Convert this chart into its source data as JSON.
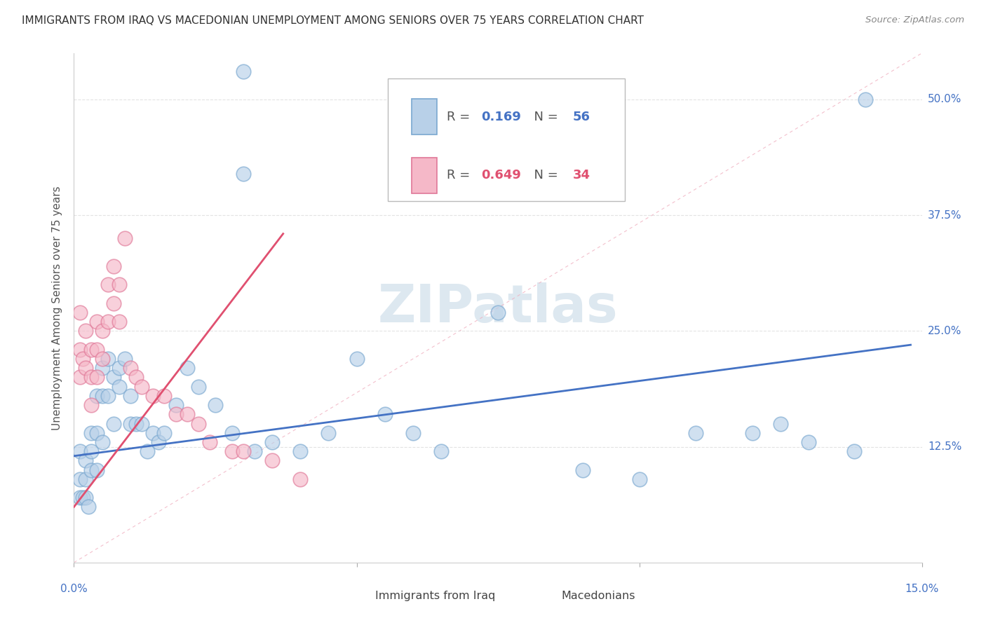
{
  "title": "IMMIGRANTS FROM IRAQ VS MACEDONIAN UNEMPLOYMENT AMONG SENIORS OVER 75 YEARS CORRELATION CHART",
  "source": "Source: ZipAtlas.com",
  "ylabel": "Unemployment Among Seniors over 75 years",
  "xlim": [
    0.0,
    0.15
  ],
  "ylim": [
    0.0,
    0.55
  ],
  "xticks": [
    0.0,
    0.05,
    0.1,
    0.15
  ],
  "xtick_labels": [
    "0.0%",
    "",
    "",
    "15.0%"
  ],
  "yticks": [
    0.0,
    0.125,
    0.25,
    0.375,
    0.5
  ],
  "ytick_labels_right": [
    "",
    "12.5%",
    "25.0%",
    "37.5%",
    "50.0%"
  ],
  "R_blue": 0.169,
  "N_blue": 56,
  "R_pink": 0.649,
  "N_pink": 34,
  "blue_color": "#b8d0e8",
  "pink_color": "#f5b8c8",
  "blue_edge_color": "#7aa8d0",
  "pink_edge_color": "#e07898",
  "blue_line_color": "#4472C4",
  "pink_line_color": "#E05070",
  "diag_color": "#f0b0c0",
  "grid_color": "#d8d8d8",
  "watermark_color": "#dde8f0",
  "legend_box_color": "#cccccc",
  "title_color": "#333333",
  "source_color": "#888888",
  "ylabel_color": "#555555",
  "ytick_color": "#4472C4",
  "xtick_color": "#4472C4",
  "blue_x": [
    0.001,
    0.001,
    0.001,
    0.0015,
    0.002,
    0.002,
    0.002,
    0.0025,
    0.003,
    0.003,
    0.003,
    0.004,
    0.004,
    0.004,
    0.005,
    0.005,
    0.005,
    0.006,
    0.006,
    0.007,
    0.007,
    0.008,
    0.008,
    0.009,
    0.01,
    0.01,
    0.011,
    0.012,
    0.013,
    0.014,
    0.015,
    0.016,
    0.018,
    0.02,
    0.022,
    0.025,
    0.028,
    0.03,
    0.03,
    0.032,
    0.035,
    0.04,
    0.045,
    0.05,
    0.055,
    0.06,
    0.065,
    0.075,
    0.09,
    0.1,
    0.11,
    0.12,
    0.125,
    0.13,
    0.138,
    0.14
  ],
  "blue_y": [
    0.12,
    0.09,
    0.07,
    0.07,
    0.11,
    0.09,
    0.07,
    0.06,
    0.14,
    0.12,
    0.1,
    0.18,
    0.14,
    0.1,
    0.21,
    0.18,
    0.13,
    0.22,
    0.18,
    0.2,
    0.15,
    0.21,
    0.19,
    0.22,
    0.18,
    0.15,
    0.15,
    0.15,
    0.12,
    0.14,
    0.13,
    0.14,
    0.17,
    0.21,
    0.19,
    0.17,
    0.14,
    0.53,
    0.42,
    0.12,
    0.13,
    0.12,
    0.14,
    0.22,
    0.16,
    0.14,
    0.12,
    0.27,
    0.1,
    0.09,
    0.14,
    0.14,
    0.15,
    0.13,
    0.12,
    0.5
  ],
  "pink_x": [
    0.001,
    0.001,
    0.001,
    0.0015,
    0.002,
    0.002,
    0.003,
    0.003,
    0.003,
    0.004,
    0.004,
    0.004,
    0.005,
    0.005,
    0.006,
    0.006,
    0.007,
    0.007,
    0.008,
    0.008,
    0.009,
    0.01,
    0.011,
    0.012,
    0.014,
    0.016,
    0.018,
    0.02,
    0.022,
    0.024,
    0.028,
    0.03,
    0.035,
    0.04
  ],
  "pink_y": [
    0.27,
    0.23,
    0.2,
    0.22,
    0.25,
    0.21,
    0.23,
    0.2,
    0.17,
    0.26,
    0.23,
    0.2,
    0.25,
    0.22,
    0.3,
    0.26,
    0.32,
    0.28,
    0.3,
    0.26,
    0.35,
    0.21,
    0.2,
    0.19,
    0.18,
    0.18,
    0.16,
    0.16,
    0.15,
    0.13,
    0.12,
    0.12,
    0.11,
    0.09
  ],
  "blue_line_x": [
    0.0,
    0.148
  ],
  "blue_line_y": [
    0.115,
    0.235
  ],
  "pink_line_x": [
    0.0,
    0.037
  ],
  "pink_line_y": [
    0.06,
    0.355
  ],
  "scatter_size": 220,
  "scatter_alpha": 0.65,
  "scatter_linewidth": 1.2
}
